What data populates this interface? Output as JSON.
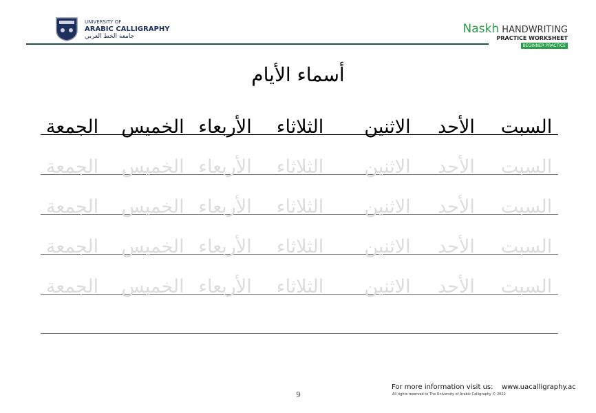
{
  "header": {
    "university": {
      "line1": "UNIVERSITY OF",
      "line2": "ARABIC CALLIGRAPHY",
      "arabic": "جامعة الخط العربي"
    },
    "brand": {
      "script": "Naskh",
      "title": "HANDWRITING",
      "subtitle": "PRACTICE WORKSHEET",
      "badge": "BEGINNER PRACTICE"
    }
  },
  "title": "أسماء الأيام",
  "days": [
    "السبت",
    "الأحد",
    "الاثنين",
    "الثلاثاء",
    "الأربعاء",
    "الخميس",
    "الجمعة"
  ],
  "footer": {
    "info": "For more information visit us:",
    "url": "www.uacalligraphy.ac",
    "rights": "All rights reserved to The University of Arabic Calligraphy © 2022",
    "page": "9"
  }
}
